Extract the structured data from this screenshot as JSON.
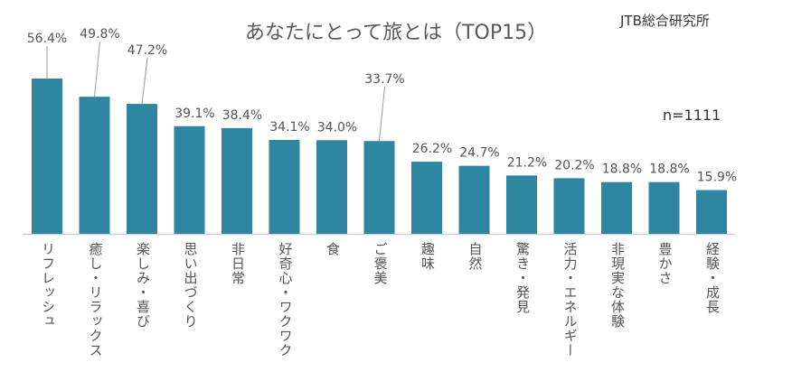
{
  "chart_data": {
    "type": "bar",
    "title": "あなたにとって旅とは（TOP15）",
    "source": "JTB総合研究所",
    "note": "n=1111",
    "categories": [
      "リフレッシュ",
      "癒し・リラックス",
      "楽しみ・喜び",
      "思い出づくり",
      "非日常",
      "好奇心・ワクワク",
      "食",
      "ご褒美",
      "趣味",
      "自然",
      "驚き・発見",
      "活力・エネルギー",
      "非現実な体験",
      "豊かさ",
      "経験・成長"
    ],
    "values": [
      56.4,
      49.8,
      47.2,
      39.1,
      38.4,
      34.1,
      34.0,
      33.7,
      26.2,
      24.7,
      21.2,
      20.2,
      18.8,
      18.8,
      15.9
    ],
    "value_labels": [
      "56.4%",
      "49.8%",
      "47.2%",
      "39.1%",
      "38.4%",
      "34.1%",
      "34.0%",
      "33.7%",
      "26.2%",
      "24.7%",
      "21.2%",
      "20.2%",
      "18.8%",
      "18.8%",
      "15.9%"
    ],
    "unit": "%",
    "ylim": [
      0,
      60
    ],
    "grid": false,
    "bar_color": "#2e86a0"
  }
}
